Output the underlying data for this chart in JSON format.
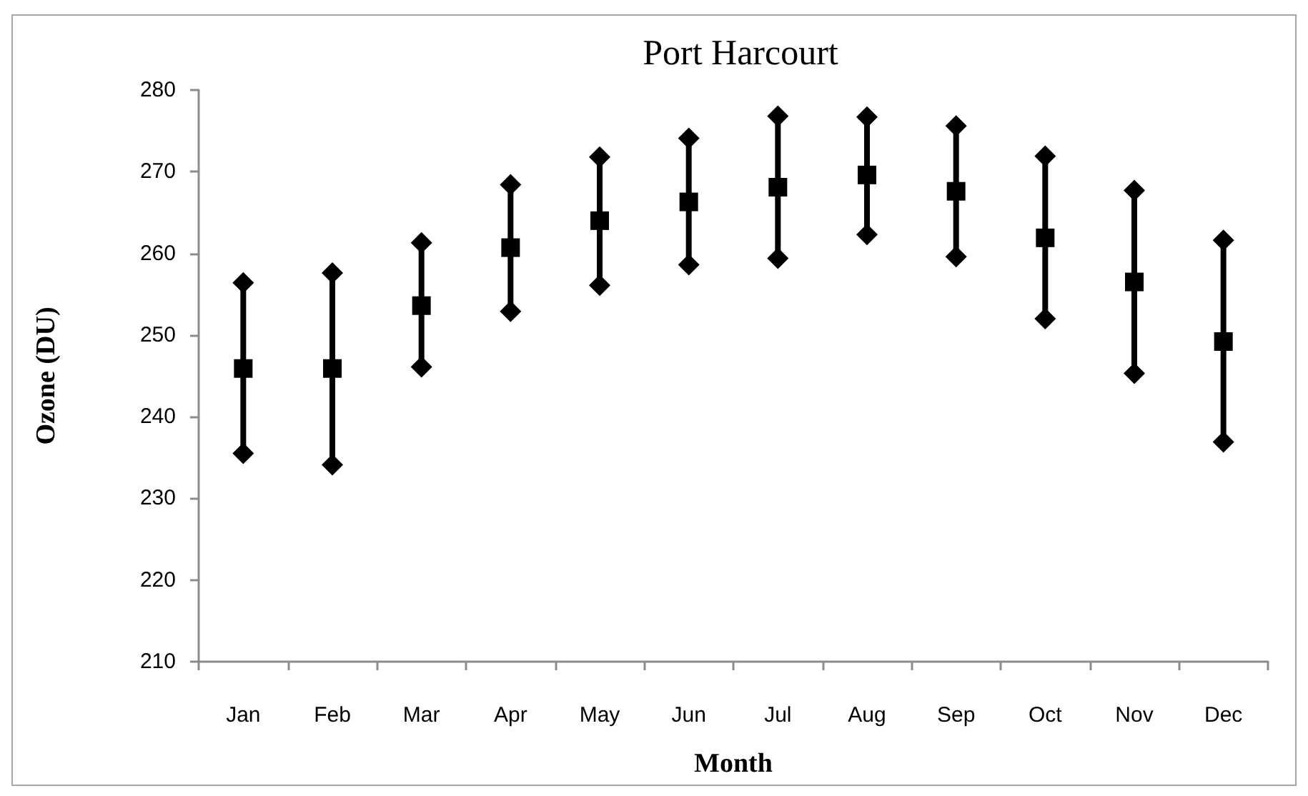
{
  "chart_data": {
    "type": "scatter",
    "title": "Port Harcourt",
    "xlabel": "Month",
    "ylabel": "Ozone (DU)",
    "categories": [
      "Jan",
      "Feb",
      "Mar",
      "Apr",
      "May",
      "Jun",
      "Jul",
      "Aug",
      "Sep",
      "Oct",
      "Nov",
      "Dec"
    ],
    "series": [
      {
        "color": "#000000",
        "marker": "diamond",
        "values": [
          256.4,
          257.6,
          261.3,
          268.4,
          271.8,
          274.1,
          276.8,
          276.7,
          275.6,
          271.9,
          267.7,
          261.6
        ]
      },
      {
        "color": "#000000",
        "marker": "square",
        "values": [
          245.9,
          245.9,
          253.6,
          260.7,
          264.0,
          266.3,
          268.1,
          269.6,
          267.6,
          261.9,
          256.5,
          249.2
        ]
      },
      {
        "color": "#000000",
        "marker": "diamond",
        "values": [
          235.5,
          234.1,
          246.1,
          252.9,
          256.1,
          258.6,
          259.4,
          262.3,
          259.6,
          252.0,
          245.3,
          236.9
        ]
      }
    ],
    "ylim": [
      210,
      280
    ],
    "yticks": [
      210,
      220,
      230,
      240,
      250,
      260,
      270,
      280
    ],
    "grid": false
  }
}
